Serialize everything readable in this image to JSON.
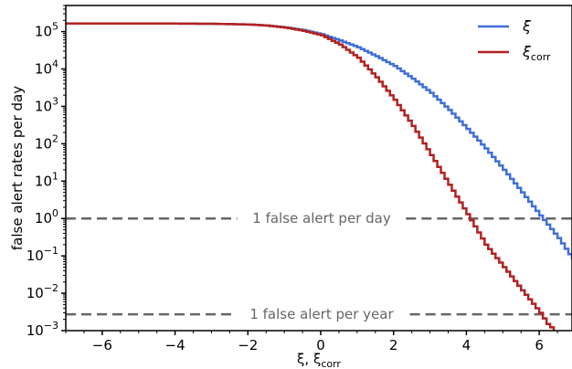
{
  "chart_data": {
    "type": "line",
    "drawstyle": "steps",
    "xlabel": "ξ,  ξcorr",
    "ylabel": "false alert rates per day",
    "yscale": "log",
    "xlim": [
      -7,
      6.9
    ],
    "ylim": [
      0.001,
      500000
    ],
    "xticks": [
      -6,
      -4,
      -2,
      0,
      2,
      4,
      6
    ],
    "xtick_labels": [
      "−6",
      "−4",
      "−2",
      "0",
      "2",
      "4",
      "6"
    ],
    "ytick_exponents": [
      -3,
      -2,
      -1,
      0,
      1,
      2,
      3,
      4,
      5
    ],
    "grid": false,
    "legend_position": "top-right",
    "series": [
      {
        "name": "ξ",
        "color": "#3f6fd8",
        "x": [
          -7,
          -6,
          -5,
          -4,
          -3,
          -2,
          -1.5,
          -1,
          -0.5,
          0,
          0.5,
          1,
          1.5,
          2,
          2.5,
          3,
          3.5,
          4,
          4.5,
          5,
          5.5,
          6,
          6.5,
          6.9
        ],
        "y": [
          165000,
          165000,
          165000,
          164000,
          162000,
          155000,
          145000,
          130000,
          110000,
          85000,
          58000,
          38000,
          22000,
          12000,
          5500,
          2300,
          800,
          250,
          75,
          20,
          5,
          1.2,
          0.3,
          0.08
        ]
      },
      {
        "name": "ξcorr",
        "color": "#b22222",
        "x": [
          -7,
          -6,
          -5,
          -4,
          -3,
          -2,
          -1.5,
          -1,
          -0.5,
          0,
          0.5,
          1,
          1.5,
          2,
          2.5,
          3,
          3.5,
          4,
          4.5,
          5,
          5.5,
          6,
          6.2,
          6.4
        ],
        "y": [
          165000,
          165000,
          165000,
          164000,
          162000,
          155000,
          145000,
          128000,
          105000,
          80000,
          45000,
          20000,
          6000,
          1500,
          300,
          50,
          8,
          1.3,
          0.2,
          0.05,
          0.012,
          0.003,
          0.0015,
          0.001
        ]
      }
    ],
    "reference_lines": [
      {
        "y": 1,
        "label": "1 false alert per day"
      },
      {
        "y": 0.00274,
        "label": "1 false alert per year"
      }
    ]
  }
}
